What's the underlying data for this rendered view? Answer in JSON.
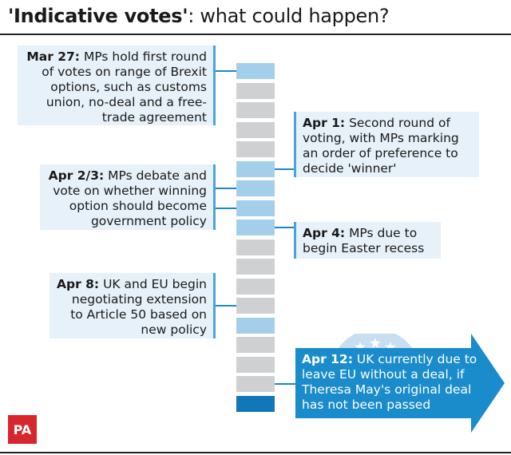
{
  "title": {
    "bold": "'Indicative votes'",
    "rest": ": what could happen?"
  },
  "events": [
    {
      "id": "mar27",
      "date": "Mar 27:",
      "text": "MPs hold first round of votes on range of Brexit options, such as customs union, no-deal and a free-trade agreement"
    },
    {
      "id": "apr1",
      "date": "Apr 1:",
      "text": "Second round of voting, with MPs marking an order of preference to decide 'winner'"
    },
    {
      "id": "apr23",
      "date": "Apr 2/3:",
      "text": "MPs debate and vote on whether winning option should become government policy"
    },
    {
      "id": "apr4",
      "date": "Apr 4:",
      "text": "MPs due to begin Easter recess"
    },
    {
      "id": "apr8",
      "date": "Apr 8:",
      "text": "UK and EU begin negotiating extension to Article 50 based on new policy"
    },
    {
      "id": "apr12",
      "date": "Apr 12:",
      "text": "UK currently due to leave EU without a deal, if Theresa May's original deal has not been passed"
    }
  ],
  "timeline": {
    "days": [
      "light",
      "gray",
      "gray",
      "gray",
      "gray",
      "light",
      "light",
      "light",
      "light",
      "gray",
      "gray",
      "gray",
      "gray",
      "light",
      "gray",
      "gray",
      "gray",
      "dark"
    ]
  },
  "logo": "PA",
  "colors": {
    "highlight": "#a4cfea",
    "final": "#1177b8",
    "plain": "#cfd0d1",
    "arrow": "#1a8ccc",
    "logo": "#d7262e"
  }
}
